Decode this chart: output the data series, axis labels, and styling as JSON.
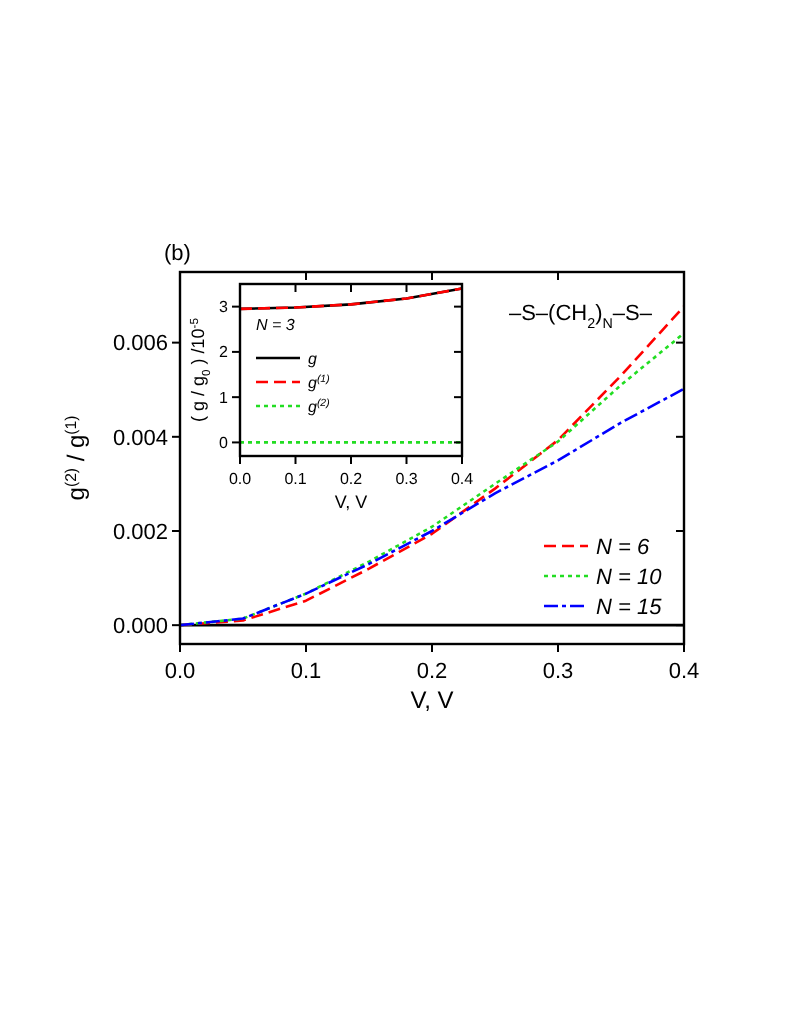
{
  "chart_data": [
    {
      "type": "line",
      "xlabel": "V, V",
      "ylabel": "g$^{(2)}$ / g$^{(1)}$",
      "annotations": [
        "(b)",
        "–S–(CH$_{2}$)$_{N}$–S–"
      ],
      "x": [
        0,
        0.05,
        0.1,
        0.15,
        0.2,
        0.25,
        0.3,
        0.35,
        0.4
      ],
      "series": [
        {
          "name": "N = 6",
          "color": "#ff0000",
          "line_style": "dashed",
          "values": [
            0,
            0.0001,
            0.00052,
            0.0012,
            0.00194,
            0.0029,
            0.00393,
            0.0053,
            0.00677
          ]
        },
        {
          "name": "N = 10",
          "color": "#22dd22",
          "line_style": "dotted",
          "values": [
            0,
            0.00014,
            0.00067,
            0.00135,
            0.00209,
            0.003,
            0.0039,
            0.0051,
            0.0062
          ]
        },
        {
          "name": "N = 15",
          "color": "#0000ff",
          "line_style": "dashdot",
          "values": [
            0,
            0.00014,
            0.00067,
            0.0013,
            0.002,
            0.0028,
            0.0035,
            0.0043,
            0.00502
          ]
        }
      ],
      "ref_lines": [
        {
          "axis": "y",
          "value": 0,
          "color": "#000000"
        }
      ],
      "xlim": [
        0,
        0.4
      ],
      "xticks": [
        {
          "value": 0,
          "label": "0.0"
        },
        0.1,
        0.2,
        0.3,
        0.4
      ],
      "ylim": [
        -0.0004,
        0.0075
      ],
      "yticks": [
        {
          "value": 0,
          "label": "0.000"
        },
        0.002,
        0.004,
        0.006
      ],
      "legend": "bottom right",
      "grid": false
    },
    {
      "type": "line",
      "xlabel": "V, V",
      "ylabel": "( g / g$_{0}$ ) /10$^{-5}$",
      "legend_title": "N = 3",
      "x": [
        0,
        0.1,
        0.2,
        0.3,
        0.4
      ],
      "series": [
        {
          "name": "g",
          "color": "#000000",
          "line_style": "solid",
          "values": [
            2.95,
            2.98,
            3.05,
            3.18,
            3.4
          ]
        },
        {
          "name": "g$^{(1)}$",
          "color": "#ff0000",
          "line_style": "dashed",
          "values": [
            2.95,
            2.98,
            3.05,
            3.18,
            3.4
          ]
        },
        {
          "name": "g$^{(2)}$",
          "color": "#22dd22",
          "line_style": "dotted",
          "values": [
            0,
            0,
            0,
            0,
            0
          ]
        }
      ],
      "xlim": [
        0,
        0.4
      ],
      "xticks": [
        {
          "value": 0,
          "label": "0.0"
        },
        0.1,
        0.2,
        0.3,
        0.4
      ],
      "ylim": [
        -0.3,
        3.5
      ],
      "yticks": [
        0,
        1,
        2,
        3
      ],
      "legend": "left",
      "grid": false
    }
  ]
}
